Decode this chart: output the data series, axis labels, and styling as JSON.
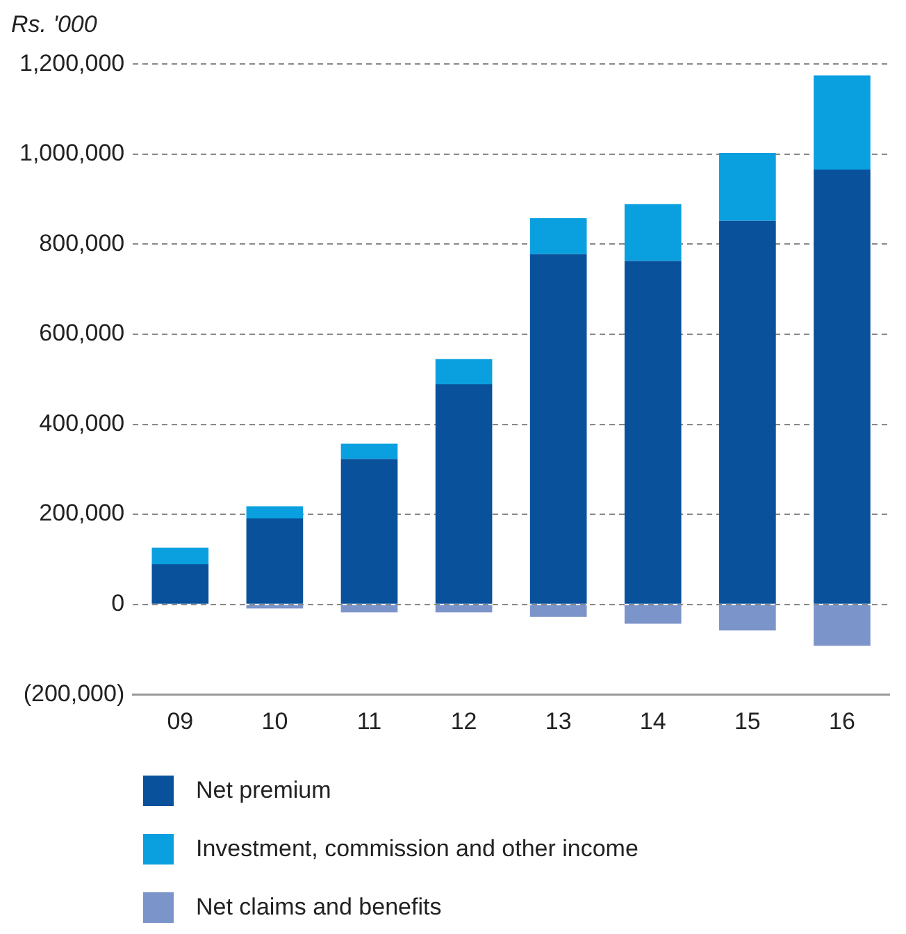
{
  "chart_data": {
    "type": "bar",
    "ylabel": "Rs. '000",
    "categories": [
      "09",
      "10",
      "11",
      "12",
      "13",
      "14",
      "15",
      "16"
    ],
    "stacked": true,
    "series": [
      {
        "name": "Net premium",
        "color": "#0a519b",
        "values": [
          89000,
          191000,
          323000,
          489000,
          778000,
          763000,
          852000,
          966000
        ]
      },
      {
        "name": "Investment, commission and other income",
        "color": "#0aa0e0",
        "values": [
          37000,
          27000,
          34000,
          56000,
          80000,
          126000,
          151000,
          209000
        ]
      },
      {
        "name": "Net claims and benefits",
        "color": "#7b94c9",
        "values": [
          null,
          -9000,
          -18000,
          -18000,
          -28000,
          -43000,
          -58000,
          -92000
        ]
      }
    ],
    "ylim": [
      -200000,
      1200000
    ],
    "yticks": [
      {
        "value": -200000,
        "label": "(200,000)"
      },
      {
        "value": 0,
        "label": "0"
      },
      {
        "value": 200000,
        "label": "200,000"
      },
      {
        "value": 400000,
        "label": "400,000"
      },
      {
        "value": 600000,
        "label": "600,000"
      },
      {
        "value": 800000,
        "label": "800,000"
      },
      {
        "value": 1000000,
        "label": "1,000,000"
      },
      {
        "value": 1200000,
        "label": "1,200,000"
      }
    ],
    "grid": "y",
    "legend": "bottom"
  }
}
